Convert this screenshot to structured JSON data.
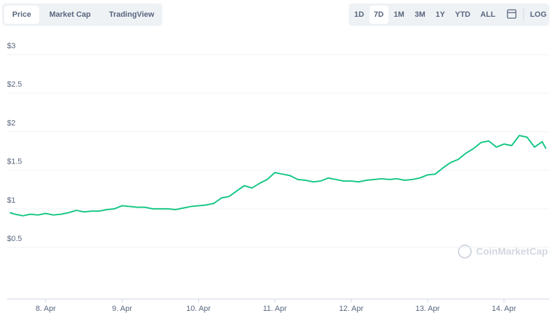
{
  "tabs": [
    "Price",
    "Market Cap",
    "TradingView"
  ],
  "ranges": [
    "1D",
    "7D",
    "1M",
    "3M",
    "1Y",
    "YTD",
    "ALL",
    "LOG"
  ],
  "watermark": "CoinMarketCap",
  "chart_data": {
    "type": "line",
    "x": [
      7.53,
      7.6,
      7.7,
      7.8,
      7.9,
      8.0,
      8.1,
      8.2,
      8.3,
      8.4,
      8.5,
      8.6,
      8.7,
      8.8,
      8.9,
      9.0,
      9.1,
      9.2,
      9.3,
      9.4,
      9.5,
      9.6,
      9.7,
      9.8,
      9.9,
      10.0,
      10.1,
      10.2,
      10.3,
      10.4,
      10.5,
      10.6,
      10.7,
      10.8,
      10.9,
      11.0,
      11.1,
      11.2,
      11.3,
      11.4,
      11.5,
      11.6,
      11.7,
      11.8,
      11.9,
      12.0,
      12.1,
      12.2,
      12.3,
      12.4,
      12.5,
      12.6,
      12.7,
      12.8,
      12.9,
      13.0,
      13.1,
      13.2,
      13.3,
      13.4,
      13.5,
      13.6,
      13.7,
      13.8,
      13.9,
      14.0,
      14.1,
      14.2,
      14.3,
      14.4,
      14.5,
      14.55
    ],
    "series": [
      {
        "name": "Price",
        "color": "#16c784",
        "values": [
          0.95,
          0.93,
          0.91,
          0.93,
          0.92,
          0.94,
          0.92,
          0.93,
          0.95,
          0.98,
          0.96,
          0.97,
          0.97,
          0.99,
          1.0,
          1.04,
          1.03,
          1.02,
          1.02,
          1.0,
          1.0,
          1.0,
          0.99,
          1.01,
          1.03,
          1.04,
          1.05,
          1.07,
          1.14,
          1.16,
          1.23,
          1.3,
          1.27,
          1.33,
          1.38,
          1.47,
          1.45,
          1.43,
          1.38,
          1.37,
          1.35,
          1.36,
          1.4,
          1.38,
          1.36,
          1.36,
          1.35,
          1.37,
          1.38,
          1.39,
          1.38,
          1.39,
          1.37,
          1.38,
          1.4,
          1.44,
          1.45,
          1.53,
          1.6,
          1.64,
          1.72,
          1.78,
          1.86,
          1.88,
          1.8,
          1.84,
          1.82,
          1.95,
          1.93,
          1.8,
          1.87,
          1.78
        ]
      }
    ],
    "xlim": [
      7.53,
      14.55
    ],
    "xticks": [
      {
        "value": 8,
        "label": "8. Apr"
      },
      {
        "value": 9,
        "label": "9. Apr"
      },
      {
        "value": 10,
        "label": "10. Apr"
      },
      {
        "value": 11,
        "label": "11. Apr"
      },
      {
        "value": 12,
        "label": "12. Apr"
      },
      {
        "value": 13,
        "label": "13. Apr"
      },
      {
        "value": 14,
        "label": "14. Apr"
      }
    ],
    "ylim": [
      -0.17,
      3.3
    ],
    "yticks": [
      {
        "value": 0.5,
        "label": "$0.5"
      },
      {
        "value": 1,
        "label": "$1"
      },
      {
        "value": 1.5,
        "label": "$1.5"
      },
      {
        "value": 2,
        "label": "$2"
      },
      {
        "value": 2.5,
        "label": "$2.5"
      },
      {
        "value": 3,
        "label": "$3"
      }
    ],
    "grid": true
  }
}
